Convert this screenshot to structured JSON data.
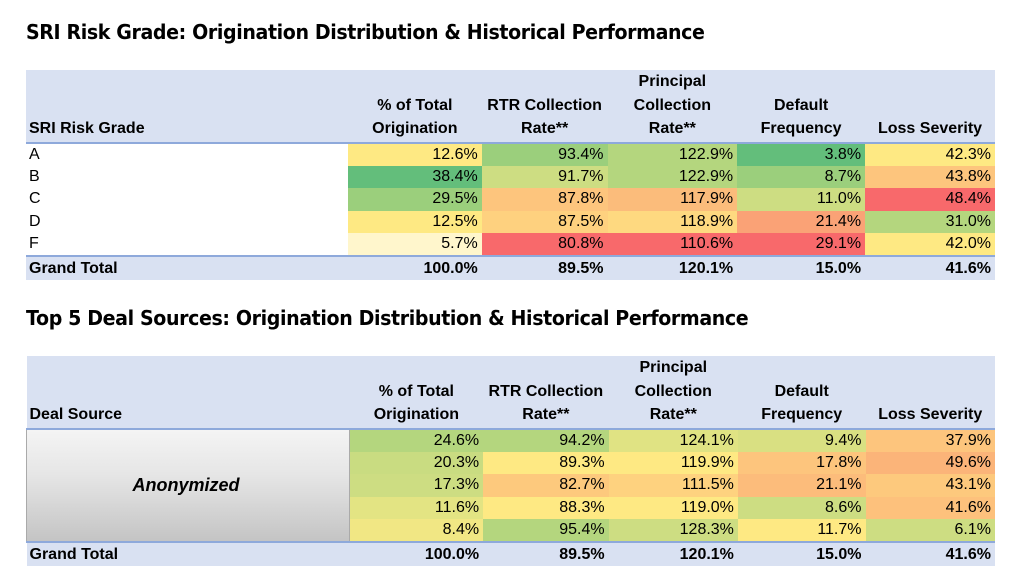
{
  "columns": [
    "% of Total Origination",
    "RTR Collection Rate**",
    "Principal Collection Rate**",
    "Default Frequency",
    "Loss Severity"
  ],
  "table1": {
    "title": "SRI Risk Grade: Origination Distribution & Historical Performance",
    "first_header": "SRI Risk Grade",
    "rows": [
      {
        "label": "A",
        "values": [
          "12.6%",
          "93.4%",
          "122.9%",
          "3.8%",
          "42.3%"
        ],
        "colors": [
          "#fee983",
          "#9bcf7c",
          "#b4d67e",
          "#63be7b",
          "#fee983"
        ]
      },
      {
        "label": "B",
        "values": [
          "38.4%",
          "91.7%",
          "122.9%",
          "8.7%",
          "43.8%"
        ],
        "colors": [
          "#63be7b",
          "#cddd82",
          "#b4d67e",
          "#9bcf7c",
          "#fdc57d"
        ]
      },
      {
        "label": "C",
        "values": [
          "29.5%",
          "87.8%",
          "117.9%",
          "11.0%",
          "48.4%"
        ],
        "colors": [
          "#9bcf7c",
          "#fdc57d",
          "#fbbc7b",
          "#cddd82",
          "#f8696b"
        ]
      },
      {
        "label": "D",
        "values": [
          "12.5%",
          "87.5%",
          "118.9%",
          "21.4%",
          "31.0%"
        ],
        "colors": [
          "#fee983",
          "#fed17f",
          "#fed980",
          "#faa276",
          "#b4d67e"
        ]
      },
      {
        "label": "F",
        "values": [
          "5.7%",
          "80.8%",
          "110.6%",
          "29.1%",
          "42.0%"
        ],
        "colors": [
          "#fff6cc",
          "#f8696b",
          "#f8696b",
          "#f8696b",
          "#fee983"
        ]
      }
    ],
    "total": {
      "label": "Grand Total",
      "values": [
        "100.0%",
        "89.5%",
        "120.1%",
        "15.0%",
        "41.6%"
      ]
    }
  },
  "table2": {
    "title": "Top 5 Deal Sources: Origination Distribution & Historical Performance",
    "first_header": "Deal Source",
    "anonymized_label": "Anonymized",
    "rows": [
      {
        "values": [
          "24.6%",
          "94.2%",
          "124.1%",
          "9.4%",
          "37.9%"
        ],
        "colors": [
          "#b4d67e",
          "#b4d67e",
          "#e0e383",
          "#d9e082",
          "#fdc57d"
        ]
      },
      {
        "values": [
          "20.3%",
          "89.3%",
          "119.9%",
          "17.8%",
          "49.6%"
        ],
        "colors": [
          "#c9dc81",
          "#fee983",
          "#fee983",
          "#fdc57d",
          "#fbb479"
        ]
      },
      {
        "values": [
          "17.3%",
          "82.7%",
          "111.5%",
          "21.1%",
          "43.1%"
        ],
        "colors": [
          "#cddd82",
          "#fdc97d",
          "#fed27f",
          "#fcbc7b",
          "#fdc97d"
        ]
      },
      {
        "values": [
          "11.6%",
          "88.3%",
          "119.0%",
          "8.6%",
          "41.6%"
        ],
        "colors": [
          "#e3e483",
          "#fee983",
          "#fee983",
          "#cddd82",
          "#fdc17c"
        ]
      },
      {
        "values": [
          "8.4%",
          "95.4%",
          "128.3%",
          "11.7%",
          "6.1%"
        ],
        "colors": [
          "#f1e784",
          "#b4d67e",
          "#cddd82",
          "#fee983",
          "#cddd82"
        ]
      }
    ],
    "total": {
      "label": "Grand Total",
      "values": [
        "100.0%",
        "89.5%",
        "120.1%",
        "15.0%",
        "41.6%"
      ]
    }
  },
  "colors": {
    "header_bg": "#d9e1f2",
    "header_rule": "#8ea9db"
  }
}
